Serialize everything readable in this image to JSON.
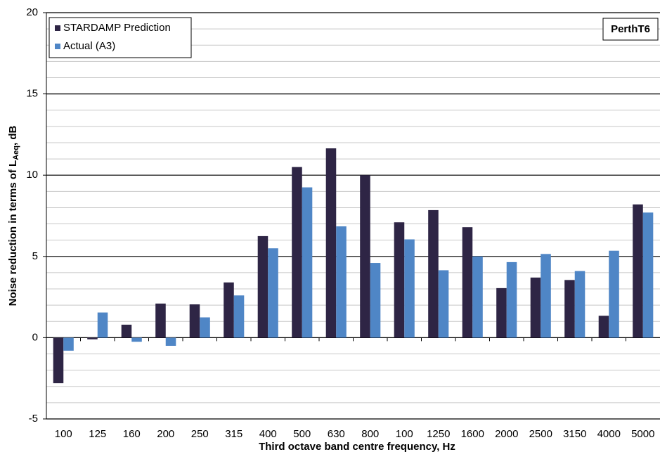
{
  "chart_data": {
    "type": "bar",
    "y_label": {
      "text": "Noise reduction in terms of L",
      "subscript": "Aeq",
      "suffix": ", dB"
    },
    "x_label": "Third octave band centre frequency, Hz",
    "annotation": "PerthT6",
    "categories": [
      "100",
      "125",
      "160",
      "200",
      "250",
      "315",
      "400",
      "500",
      "630",
      "800",
      "100",
      "1250",
      "1600",
      "2000",
      "2500",
      "3150",
      "4000",
      "5000"
    ],
    "series": [
      {
        "name": "STARDAMP Prediction",
        "color": "#2e2545",
        "values": [
          -2.8,
          -0.1,
          0.8,
          2.1,
          2.05,
          3.4,
          6.25,
          10.5,
          11.65,
          10.0,
          7.1,
          7.85,
          6.8,
          3.05,
          3.7,
          3.55,
          1.35,
          8.2
        ]
      },
      {
        "name": "Actual (A3)",
        "color": "#4f86c6",
        "values": [
          -0.8,
          1.55,
          -0.25,
          -0.5,
          1.25,
          2.6,
          5.5,
          9.25,
          6.85,
          4.6,
          6.05,
          4.15,
          5.0,
          4.65,
          5.15,
          4.1,
          5.35,
          7.7
        ]
      }
    ],
    "ylim": [
      -5,
      20
    ],
    "yticks": [
      -5,
      0,
      5,
      10,
      15,
      20
    ],
    "grid": true,
    "minor_grid_step": 1,
    "legend": "upper left"
  }
}
